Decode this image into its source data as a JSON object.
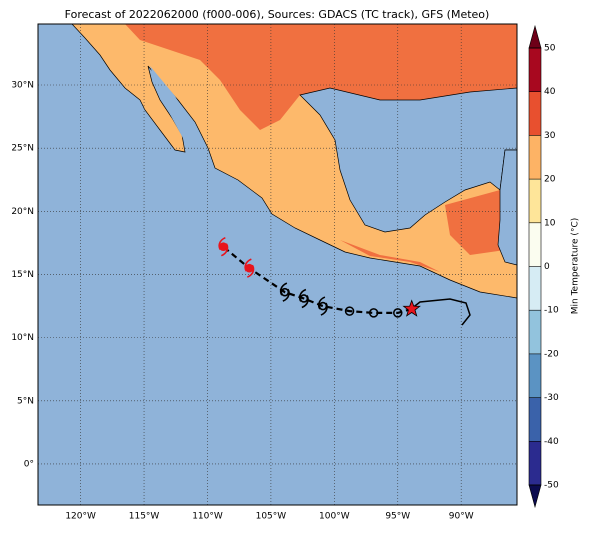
{
  "chart_data": {
    "type": "map",
    "title": "Forecast of 2022062000 (f000-006), Sources: GDACS (TC track), GFS (Meteo)",
    "xlim": [
      -123.36,
      -85.6
    ],
    "ylim": [
      -3.25,
      34.83
    ],
    "xticks": [
      {
        "value": -120,
        "label": "120°W"
      },
      {
        "value": -115,
        "label": "115°W"
      },
      {
        "value": -110,
        "label": "110°W"
      },
      {
        "value": -105,
        "label": "105°W"
      },
      {
        "value": -100,
        "label": "100°W"
      },
      {
        "value": -95,
        "label": "95°W"
      },
      {
        "value": -90,
        "label": "90°W"
      }
    ],
    "yticks": [
      {
        "value": 0,
        "label": "0°"
      },
      {
        "value": 5,
        "label": "5°N"
      },
      {
        "value": 10,
        "label": "10°N"
      },
      {
        "value": 15,
        "label": "15°N"
      },
      {
        "value": 20,
        "label": "20°N"
      },
      {
        "value": 25,
        "label": "25°N"
      },
      {
        "value": 30,
        "label": "30°N"
      }
    ],
    "grid": true,
    "track": {
      "x": [
        -93.9,
        -95.0,
        -96.9,
        -98.8,
        -100.9,
        -102.4,
        -103.9,
        -106.7,
        -108.75
      ],
      "y": [
        12.27,
        11.96,
        11.96,
        12.1,
        12.5,
        13.1,
        13.6,
        15.5,
        17.2
      ],
      "markers": [
        "star",
        "circle",
        "circle",
        "circle",
        "spiral",
        "spiral",
        "spiral",
        "spiral",
        "spiral"
      ],
      "colors": [
        "#e8141c",
        "#000000",
        "#000000",
        "#000000",
        "#000000",
        "#000000",
        "#000000",
        "#e8141c",
        "#e8141c"
      ]
    },
    "colorbar": {
      "label": "Min Temperature (°C)",
      "lim": [
        -50,
        50
      ],
      "ticks": [
        -50,
        -40,
        -30,
        -20,
        -10,
        0,
        10,
        20,
        30,
        40,
        50
      ],
      "colors": [
        "#2b2b8f",
        "#3a62aa",
        "#5b93c3",
        "#92c3dd",
        "#d6ecf4",
        "#fbfdf0",
        "#fee599",
        "#fdb365",
        "#e8502f",
        "#a8081f"
      ],
      "under": "#0b0b4f",
      "over": "#6e0018"
    }
  }
}
